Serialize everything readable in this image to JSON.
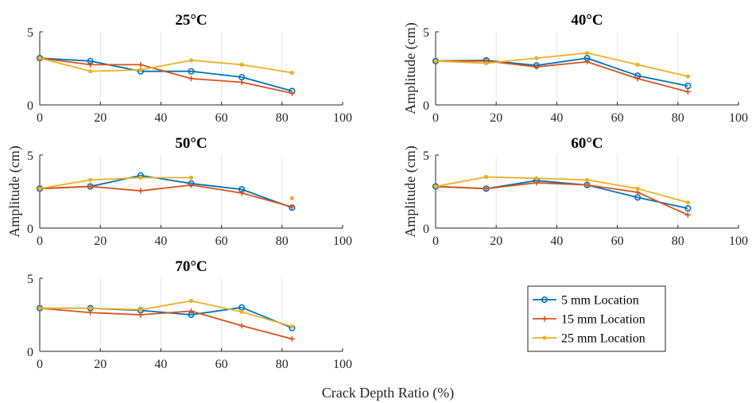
{
  "figure": {
    "shared_xlabel": "Crack Depth Ratio (%)"
  },
  "legend": {
    "entries": [
      {
        "name": "5 mm Location",
        "color": "#0072BD",
        "marker": "circle"
      },
      {
        "name": "15 mm Location",
        "color": "#D95319",
        "marker": "plus"
      },
      {
        "name": "25 mm Location",
        "color": "#EDB120",
        "marker": "dot"
      }
    ]
  },
  "chart_data": [
    {
      "type": "line",
      "title": "25°C",
      "xlabel": "",
      "ylabel": "",
      "xlim": [
        0,
        100
      ],
      "ylim": [
        0,
        5
      ],
      "xticks": [
        "0",
        "20",
        "40",
        "60",
        "80",
        "100"
      ],
      "yticks": [
        "0",
        "5"
      ],
      "grid": "vertical",
      "x": [
        0,
        16.7,
        33.3,
        50,
        66.7,
        83.3
      ],
      "series": [
        {
          "name": "5 mm Location",
          "values": [
            3.2,
            3.0,
            2.3,
            2.3,
            1.9,
            0.95
          ]
        },
        {
          "name": "15 mm Location",
          "values": [
            3.2,
            2.75,
            2.75,
            1.8,
            1.55,
            0.8
          ]
        },
        {
          "name": "25 mm Location",
          "values": [
            3.2,
            2.3,
            2.4,
            3.05,
            2.75,
            2.2
          ]
        }
      ]
    },
    {
      "type": "line",
      "title": "40°C",
      "xlabel": "",
      "ylabel": "Amplitude (cm)",
      "xlim": [
        0,
        100
      ],
      "ylim": [
        0,
        5
      ],
      "xticks": [
        "0",
        "20",
        "40",
        "60",
        "80",
        "100"
      ],
      "yticks": [
        "0",
        "5"
      ],
      "grid": "vertical",
      "x": [
        0,
        16.7,
        33.3,
        50,
        66.7,
        83.3
      ],
      "series": [
        {
          "name": "5 mm Location",
          "values": [
            3.0,
            3.05,
            2.7,
            3.2,
            2.0,
            1.3
          ]
        },
        {
          "name": "15 mm Location",
          "values": [
            3.0,
            3.0,
            2.6,
            2.95,
            1.8,
            0.9
          ]
        },
        {
          "name": "25 mm Location",
          "values": [
            3.0,
            2.85,
            3.2,
            3.55,
            2.75,
            1.95
          ]
        }
      ]
    },
    {
      "type": "line",
      "title": "50°C",
      "xlabel": "",
      "ylabel": "Amplitude (cm)",
      "xlim": [
        0,
        100
      ],
      "ylim": [
        0,
        5
      ],
      "xticks": [
        "0",
        "20",
        "40",
        "60",
        "80",
        "100"
      ],
      "yticks": [
        "0",
        "5"
      ],
      "grid": "vertical",
      "x": [
        0,
        16.7,
        33.3,
        50,
        66.7,
        83.3
      ],
      "series": [
        {
          "name": "5 mm Location",
          "values": [
            2.7,
            2.85,
            3.6,
            3.05,
            2.65,
            1.4
          ]
        },
        {
          "name": "15 mm Location",
          "values": [
            2.7,
            2.85,
            2.55,
            2.95,
            2.4,
            1.45
          ]
        },
        {
          "name": "25 mm Location",
          "values": [
            2.7,
            3.3,
            3.45,
            3.45,
            null,
            2.05
          ]
        }
      ]
    },
    {
      "type": "line",
      "title": "60°C",
      "xlabel": "",
      "ylabel": "Amplitude (cm)",
      "xlim": [
        0,
        100
      ],
      "ylim": [
        0,
        5
      ],
      "xticks": [
        "0",
        "20",
        "40",
        "60",
        "80",
        "100"
      ],
      "yticks": [
        "0",
        "5"
      ],
      "grid": "vertical",
      "x": [
        0,
        16.7,
        33.3,
        50,
        66.7,
        83.3
      ],
      "series": [
        {
          "name": "5 mm Location",
          "values": [
            2.85,
            2.7,
            3.25,
            2.95,
            2.1,
            1.35
          ]
        },
        {
          "name": "15 mm Location",
          "values": [
            2.85,
            2.7,
            3.1,
            2.95,
            2.45,
            0.9
          ]
        },
        {
          "name": "25 mm Location",
          "values": [
            2.85,
            3.5,
            3.4,
            3.3,
            2.7,
            1.75
          ]
        }
      ]
    },
    {
      "type": "line",
      "title": "70°C",
      "xlabel": "",
      "ylabel": "",
      "xlim": [
        0,
        100
      ],
      "ylim": [
        0,
        5
      ],
      "xticks": [
        "0",
        "20",
        "40",
        "60",
        "80",
        "100"
      ],
      "yticks": [
        "0",
        "5"
      ],
      "grid": "vertical",
      "x": [
        0,
        16.7,
        33.3,
        50,
        66.7,
        83.3
      ],
      "series": [
        {
          "name": "5 mm Location",
          "values": [
            2.95,
            2.95,
            2.8,
            2.5,
            3.0,
            1.6
          ]
        },
        {
          "name": "15 mm Location",
          "values": [
            2.95,
            2.65,
            2.5,
            2.75,
            1.75,
            0.85
          ]
        },
        {
          "name": "25 mm Location",
          "values": [
            2.95,
            2.95,
            2.85,
            3.45,
            2.7,
            1.7
          ]
        }
      ]
    }
  ]
}
